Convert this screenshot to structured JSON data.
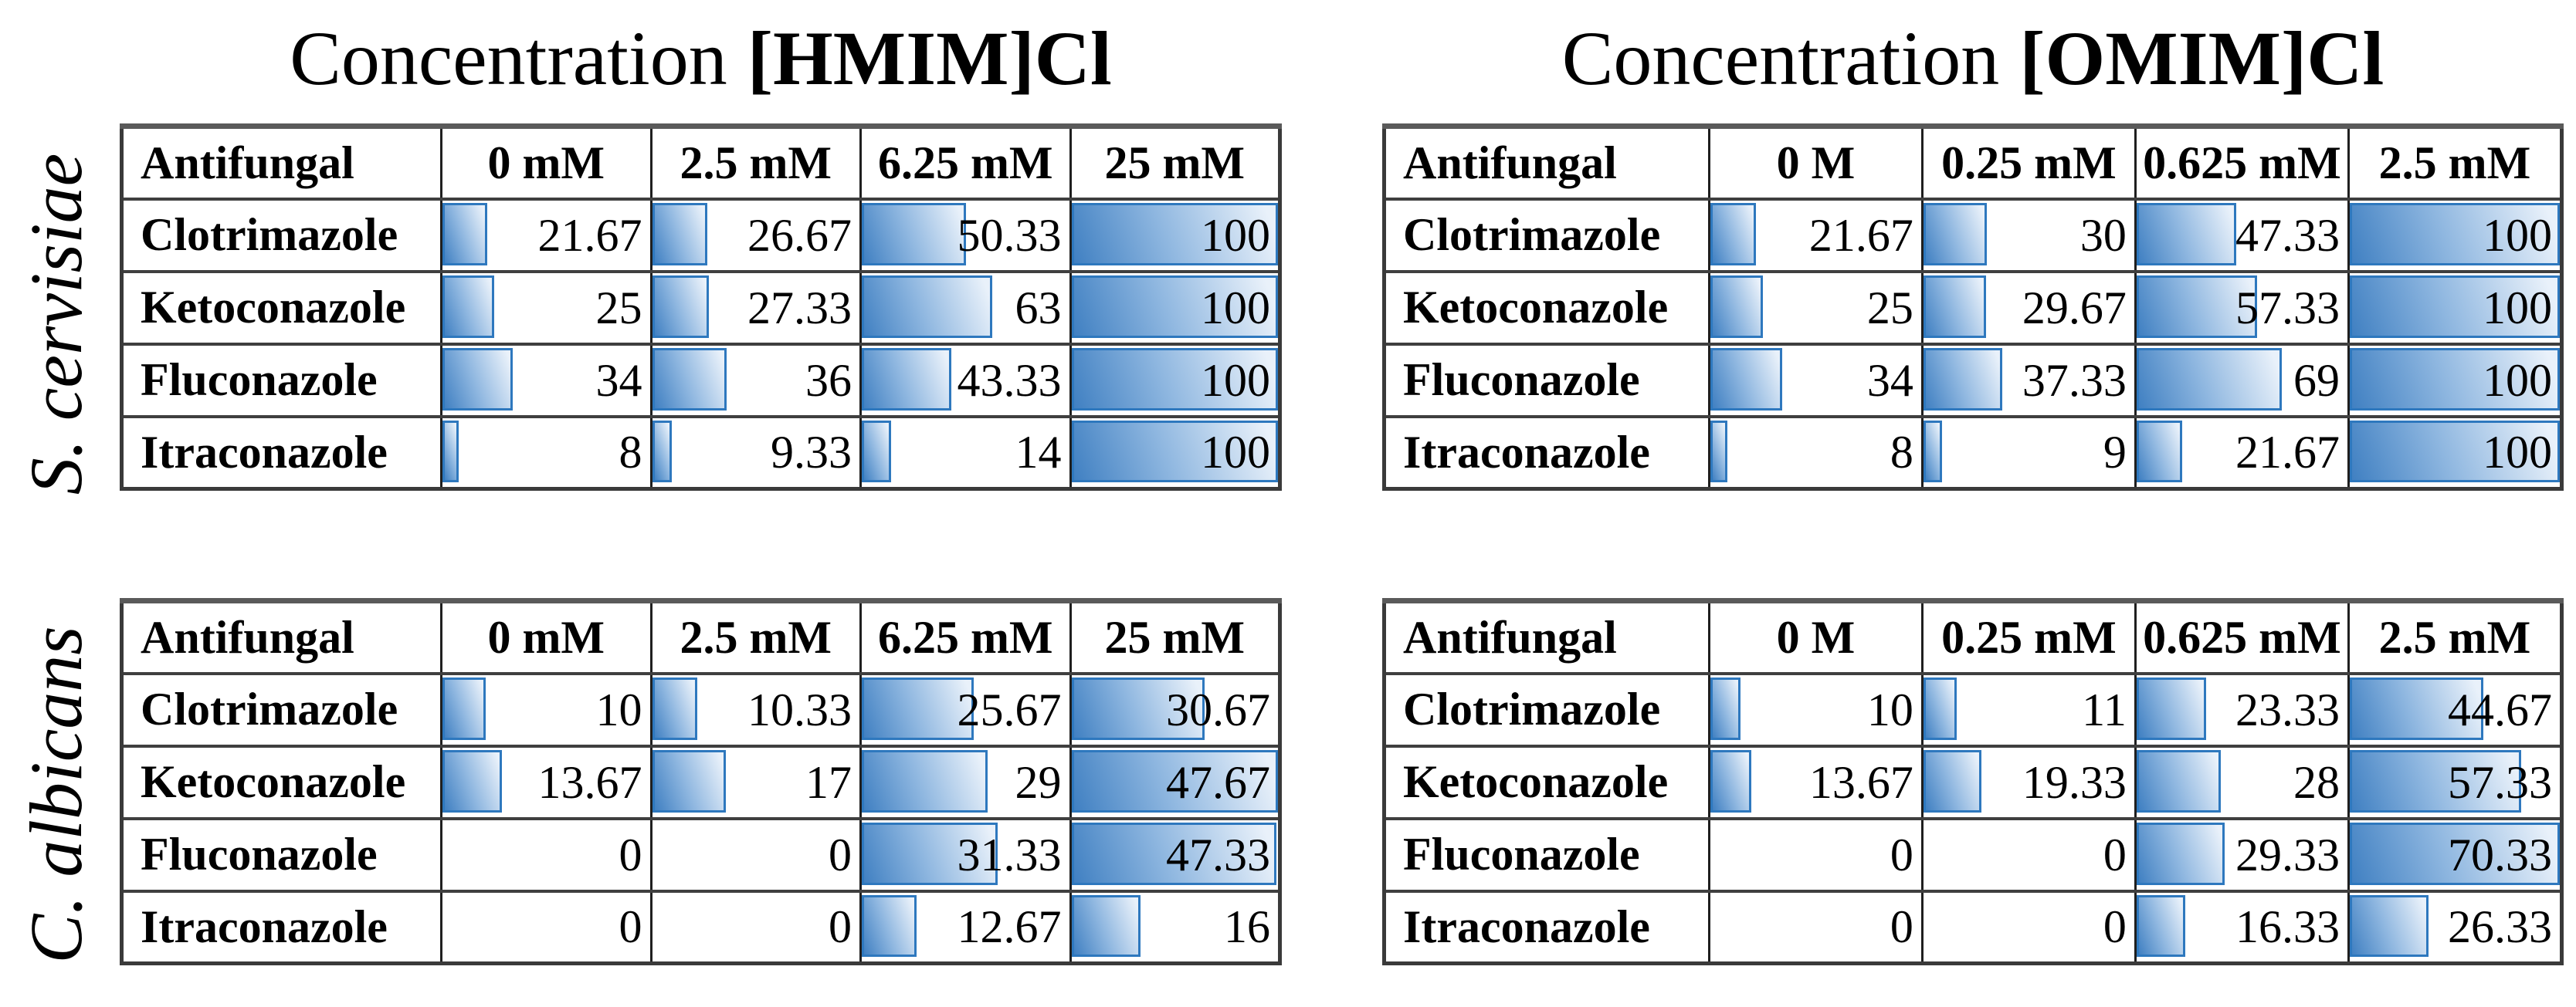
{
  "figure": {
    "organism_labels": [
      "S. cervisiae",
      "C. albicans"
    ],
    "panel_titles": [
      {
        "prefix": "Concentration",
        "compound": "[HMIM]Cl"
      },
      {
        "prefix": "Concentration",
        "compound": "[OMIM]Cl"
      }
    ]
  },
  "colors": {
    "background": "#ffffff",
    "text": "#000000",
    "table_border": "#3a3a3a",
    "bar_border": "#2e78be",
    "bar_dark": "#4080c2",
    "bar_mid": "#8fb7e0",
    "bar_light": "#e9f1fa"
  },
  "chart_data": [
    {
      "type": "table",
      "slot": "p0-top",
      "panel_title": "Concentration [HMIM]Cl",
      "organism": "S. cervisiae",
      "columns": [
        "Antifungal",
        "0 mM",
        "2.5 mM",
        "6.25 mM",
        "25 mM"
      ],
      "rows": [
        {
          "label": "Clotrimazole",
          "values": [
            "21.67",
            "26.67",
            "50.33",
            "100"
          ]
        },
        {
          "label": "Ketoconazole",
          "values": [
            "25",
            "27.33",
            "63",
            "100"
          ]
        },
        {
          "label": "Fluconazole",
          "values": [
            "34",
            "36",
            "43.33",
            "100"
          ]
        },
        {
          "label": "Itraconazole",
          "values": [
            "8",
            "9.33",
            "14",
            "100"
          ]
        }
      ],
      "bar_scale_max": 100,
      "bar_style": "blue gradient data bar, width proportional to value / table max"
    },
    {
      "type": "table",
      "slot": "p1-top",
      "panel_title": "Concentration [OMIM]Cl",
      "organism": "S. cervisiae",
      "columns": [
        "Antifungal",
        "0 M",
        "0.25 mM",
        "0.625 mM",
        "2.5 mM"
      ],
      "rows": [
        {
          "label": "Clotrimazole",
          "values": [
            "21.67",
            "30",
            "47.33",
            "100"
          ]
        },
        {
          "label": "Ketoconazole",
          "values": [
            "25",
            "29.67",
            "57.33",
            "100"
          ]
        },
        {
          "label": "Fluconazole",
          "values": [
            "34",
            "37.33",
            "69",
            "100"
          ]
        },
        {
          "label": "Itraconazole",
          "values": [
            "8",
            "9",
            "21.67",
            "100"
          ]
        }
      ],
      "bar_scale_max": 100,
      "bar_style": "blue gradient data bar, width proportional to value / table max"
    },
    {
      "type": "table",
      "slot": "p0-bottom",
      "panel_title": "Concentration [HMIM]Cl",
      "organism": "C. albicans",
      "columns": [
        "Antifungal",
        "0 mM",
        "2.5 mM",
        "6.25 mM",
        "25 mM"
      ],
      "rows": [
        {
          "label": "Clotrimazole",
          "values": [
            "10",
            "10.33",
            "25.67",
            "30.67"
          ]
        },
        {
          "label": "Ketoconazole",
          "values": [
            "13.67",
            "17",
            "29",
            "47.67"
          ]
        },
        {
          "label": "Fluconazole",
          "values": [
            "0",
            "0",
            "31.33",
            "47.33"
          ]
        },
        {
          "label": "Itraconazole",
          "values": [
            "0",
            "0",
            "12.67",
            "16"
          ]
        }
      ],
      "bar_scale_max": 47.67,
      "bar_style": "blue gradient data bar, width proportional to value / table max"
    },
    {
      "type": "table",
      "slot": "p1-bottom",
      "panel_title": "Concentration [OMIM]Cl",
      "organism": "C. albicans",
      "columns": [
        "Antifungal",
        "0 M",
        "0.25 mM",
        "0.625 mM",
        "2.5 mM"
      ],
      "rows": [
        {
          "label": "Clotrimazole",
          "values": [
            "10",
            "11",
            "23.33",
            "44.67"
          ]
        },
        {
          "label": "Ketoconazole",
          "values": [
            "13.67",
            "19.33",
            "28",
            "57.33"
          ]
        },
        {
          "label": "Fluconazole",
          "values": [
            "0",
            "0",
            "29.33",
            "70.33"
          ]
        },
        {
          "label": "Itraconazole",
          "values": [
            "0",
            "0",
            "16.33",
            "26.33"
          ]
        }
      ],
      "bar_scale_max": 70.33,
      "bar_style": "blue gradient data bar, width proportional to value / table max"
    }
  ]
}
